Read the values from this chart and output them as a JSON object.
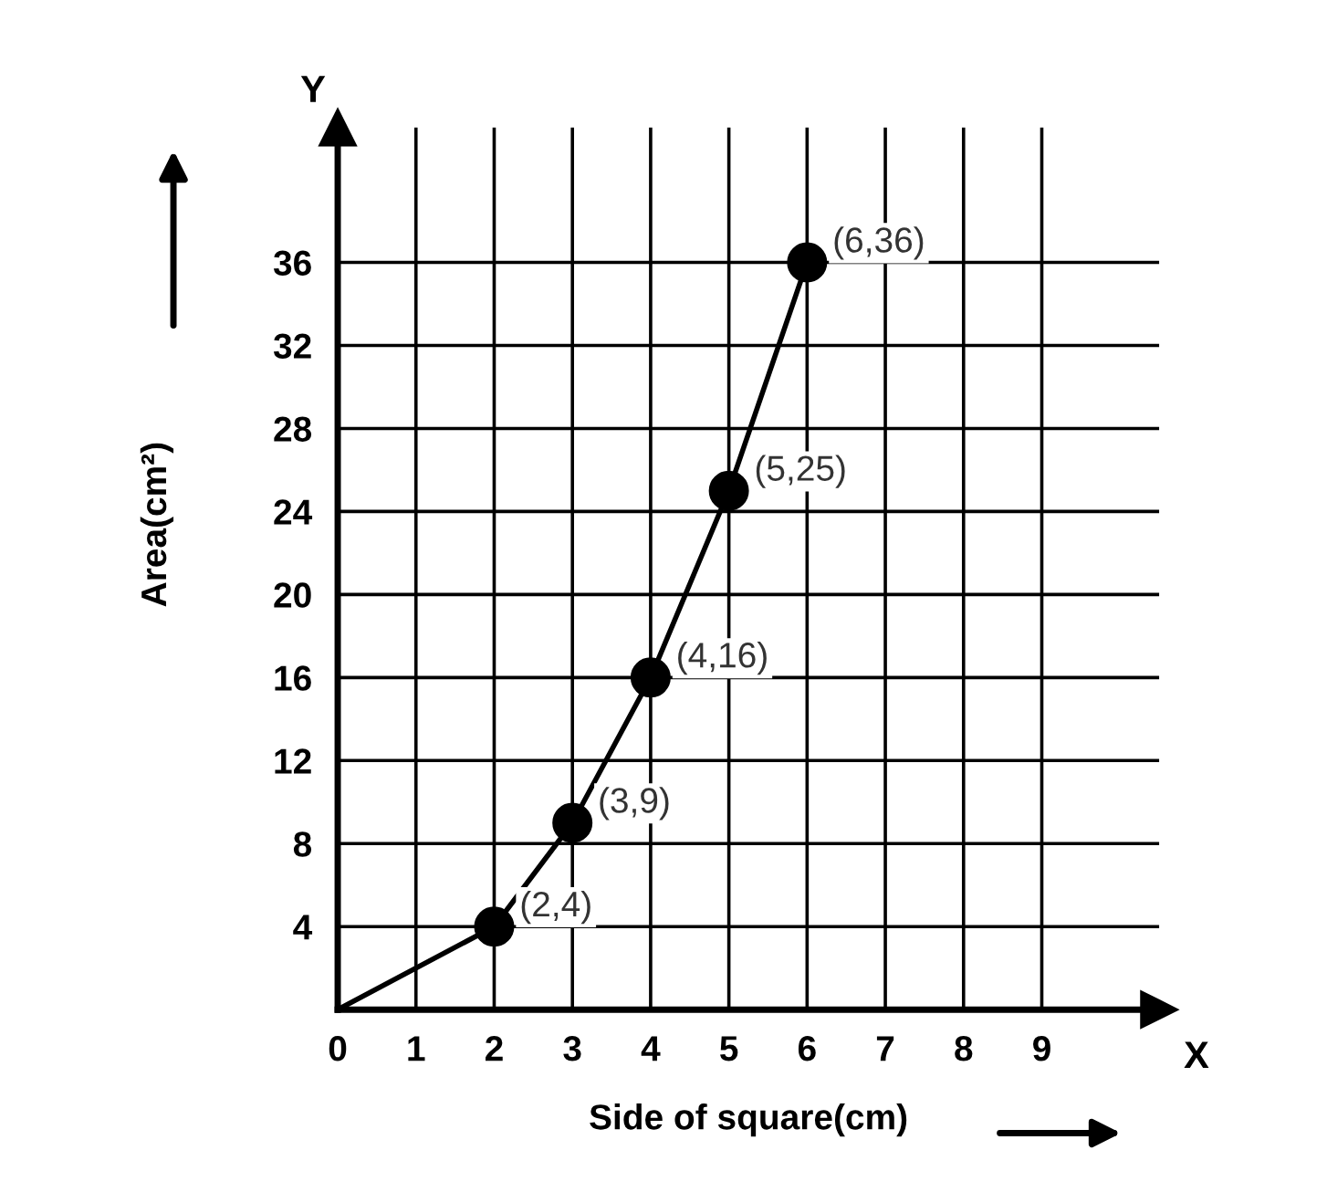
{
  "chart_data": {
    "type": "line",
    "xlabel": "Side of square(cm)",
    "ylabel": "Area(cm²)",
    "xlim": [
      0,
      10.5
    ],
    "ylim": [
      0,
      42.5
    ],
    "xticks": [
      0,
      1,
      2,
      3,
      4,
      5,
      6,
      7,
      8,
      9
    ],
    "yticks": [
      4,
      8,
      12,
      16,
      20,
      24,
      28,
      32,
      36
    ],
    "grid": true,
    "legend": false,
    "series": [
      {
        "color": "#000000",
        "marker": "none",
        "x": [
          0,
          2,
          3,
          4,
          5,
          6
        ],
        "values": [
          0,
          4,
          9,
          16,
          25,
          36
        ]
      },
      {
        "type": "scatter",
        "color": "#000000",
        "marker": "circle",
        "x": [
          2,
          3,
          4,
          5,
          6
        ],
        "values": [
          4,
          9,
          16,
          25,
          36
        ]
      }
    ],
    "annotations": [
      {
        "text": "(2,4)",
        "x": 2,
        "y": 4
      },
      {
        "text": "(3,9)",
        "x": 3,
        "y": 9
      },
      {
        "text": "(4,16)",
        "x": 4,
        "y": 16
      },
      {
        "text": "(5,25)",
        "x": 5,
        "y": 25
      },
      {
        "text": "(6,36)",
        "x": 6,
        "y": 36
      },
      "X",
      "Y"
    ]
  }
}
